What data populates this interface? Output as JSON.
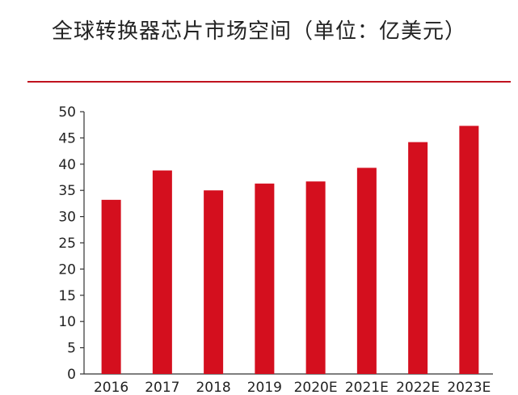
{
  "title": "全球转换器芯片市场空间（单位：亿美元）",
  "colors": {
    "bar": "#d40f1e",
    "rule": "#c0121f",
    "axis": "#333333",
    "text": "#222222"
  },
  "chart_data": {
    "type": "bar",
    "title": "全球转换器芯片市场空间（单位：亿美元）",
    "unit": "亿美元",
    "categories": [
      "2016",
      "2017",
      "2018",
      "2019",
      "2020E",
      "2021E",
      "2022E",
      "2023E"
    ],
    "values": [
      33.2,
      38.8,
      35.0,
      36.3,
      36.7,
      39.3,
      44.2,
      47.3
    ],
    "yticks": [
      "0",
      "5",
      "10",
      "15",
      "20",
      "25",
      "30",
      "35",
      "40",
      "45",
      "50"
    ],
    "ylim": [
      0,
      50
    ],
    "xlabel": "",
    "ylabel": "",
    "grid": false,
    "legend": "none"
  }
}
